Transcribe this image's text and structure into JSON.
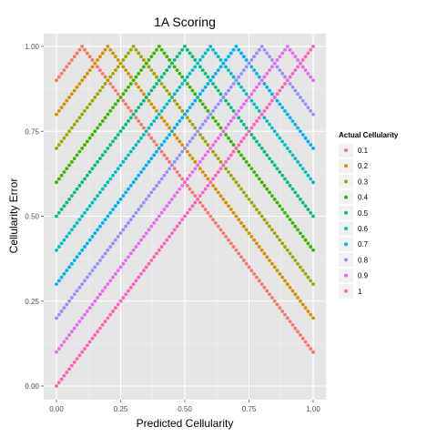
{
  "chart_data": {
    "type": "scatter",
    "title": "1A Scoring",
    "xlabel": "Predicted Cellularity",
    "ylabel": "Cellularity Error",
    "xlim": [
      0,
      1
    ],
    "ylim": [
      0,
      1
    ],
    "x_ticks": [
      0,
      0.25,
      0.5,
      0.75,
      1
    ],
    "x_tick_labels": [
      "0.00",
      "0.25",
      "0.50",
      "0.75",
      "1.00"
    ],
    "y_ticks": [
      0,
      0.25,
      0.5,
      0.75,
      1
    ],
    "y_tick_labels": [
      "0.00",
      "0.25",
      "0.50",
      "0.75",
      "1.00"
    ],
    "grid": true,
    "legend_title": "Actual Cellularity",
    "legend_position": "right",
    "x_step": 0.01,
    "formula": "y = 1 - |x - actual|",
    "series": [
      {
        "name": "0.1",
        "actual": 0.1,
        "color": "#F8766D"
      },
      {
        "name": "0.2",
        "actual": 0.2,
        "color": "#D89000"
      },
      {
        "name": "0.3",
        "actual": 0.3,
        "color": "#A3A500"
      },
      {
        "name": "0.4",
        "actual": 0.4,
        "color": "#39B600"
      },
      {
        "name": "0.5",
        "actual": 0.5,
        "color": "#00BF7D"
      },
      {
        "name": "0.6",
        "actual": 0.6,
        "color": "#00BFC4"
      },
      {
        "name": "0.7",
        "actual": 0.7,
        "color": "#00B0F6"
      },
      {
        "name": "0.8",
        "actual": 0.8,
        "color": "#9590FF"
      },
      {
        "name": "0.9",
        "actual": 0.9,
        "color": "#E76BF3"
      },
      {
        "name": "1",
        "actual": 1.0,
        "color": "#FF62BC"
      }
    ],
    "colors": {
      "panel_bg": "#E5E5E5",
      "grid_major": "#FFFFFF",
      "grid_minor": "#F2F2F2",
      "tick_text": "#4D4D4D"
    }
  }
}
